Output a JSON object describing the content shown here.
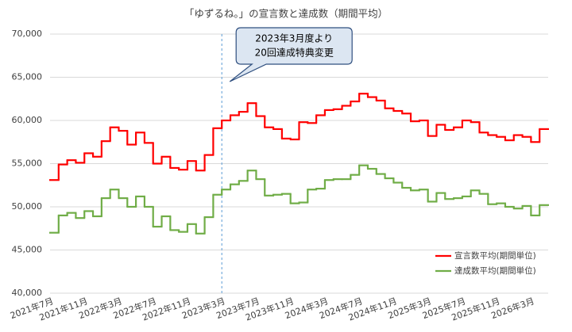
{
  "chart_data": {
    "type": "step-line",
    "title": "「ゆずるね。」の宣言数と達成数（期間平均）",
    "categories": [
      "2021年7月",
      null,
      null,
      null,
      "2021年11月",
      null,
      null,
      null,
      "2022年3月",
      null,
      null,
      null,
      "2022年7月",
      null,
      null,
      null,
      "2022年11月",
      null,
      null,
      null,
      "2023年3月",
      null,
      null,
      null,
      "2023年7月",
      null,
      null,
      null,
      "2023年11月",
      null,
      null,
      null,
      "2024年3月",
      null,
      null,
      null,
      "2024年7月",
      null,
      null,
      null,
      "2024年11月",
      null,
      null,
      null,
      "2025年3月",
      null,
      null,
      null,
      "2025年7月",
      null,
      null,
      null,
      "2025年11月",
      null,
      null,
      null,
      "2026年3月",
      null
    ],
    "series": [
      {
        "name": "宣言数平均(期間単位)",
        "color": "#ff0000",
        "values": [
          53100,
          54900,
          55400,
          55100,
          56200,
          55800,
          57600,
          59200,
          58800,
          57200,
          58600,
          57400,
          55000,
          55800,
          54500,
          54300,
          55300,
          54200,
          56000,
          59100,
          60000,
          60600,
          61000,
          62000,
          60500,
          59200,
          59000,
          57900,
          57800,
          59800,
          59700,
          60600,
          61200,
          61300,
          61700,
          62200,
          63100,
          62700,
          62300,
          61400,
          61100,
          60800,
          59900,
          60000,
          58200,
          59500,
          58900,
          59200,
          60000,
          59800,
          58600,
          58300,
          58100,
          57700,
          58300,
          58100,
          57500,
          59000
        ]
      },
      {
        "name": "達成数平均(期間単位)",
        "color": "#70ad47",
        "values": [
          47000,
          49000,
          49300,
          48700,
          49500,
          48900,
          51000,
          52000,
          51000,
          50000,
          51200,
          50000,
          47700,
          48900,
          47300,
          47100,
          48000,
          46900,
          48800,
          51400,
          52000,
          52600,
          53000,
          54200,
          53200,
          51300,
          51400,
          51500,
          50400,
          50500,
          52000,
          52100,
          53100,
          53200,
          53200,
          53700,
          54800,
          54400,
          53800,
          53300,
          52800,
          52200,
          51900,
          52000,
          50600,
          51600,
          50900,
          51000,
          51200,
          51900,
          51500,
          50300,
          50400,
          50000,
          49800,
          50100,
          49000,
          50200
        ]
      }
    ],
    "ylim": [
      40000,
      70000
    ],
    "yticks": [
      {
        "value": 40000,
        "label": "40,000"
      },
      {
        "value": 45000,
        "label": "45,000"
      },
      {
        "value": 50000,
        "label": "50,000"
      },
      {
        "value": 55000,
        "label": "55,000"
      },
      {
        "value": 60000,
        "label": "60,000"
      },
      {
        "value": 65000,
        "label": "65,000"
      },
      {
        "value": 70000,
        "label": "70,000"
      }
    ],
    "grid": true,
    "legend": "lower-right",
    "annotation": {
      "text": [
        "2023年3月度より",
        "20回達成特典変更"
      ],
      "x": "2023年3月"
    }
  }
}
